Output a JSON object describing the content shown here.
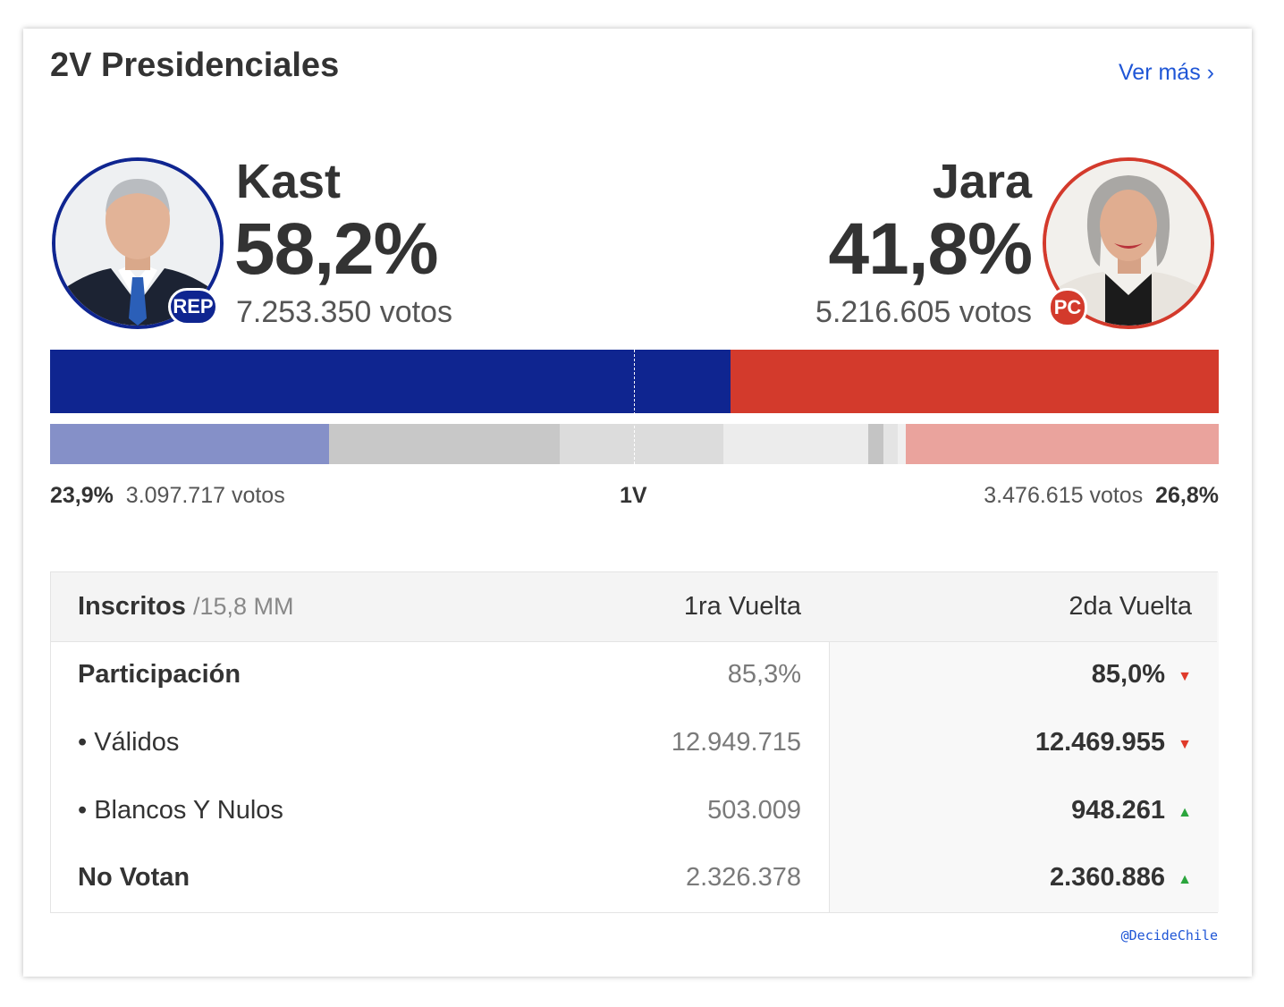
{
  "header": {
    "title": "2V Presidenciales",
    "more_link": "Ver más ›"
  },
  "candidates": {
    "left": {
      "name": "Kast",
      "pct": "58,2%",
      "votes": "7.253.350 votos",
      "party": "REP",
      "color": "#0f2590",
      "share": 58.2
    },
    "right": {
      "name": "Jara",
      "pct": "41,8%",
      "votes": "5.216.605 votos",
      "party": "PC",
      "color": "#d33a2c",
      "share": 41.8
    }
  },
  "first_round": {
    "label": "1V",
    "left_pct": "23,9%",
    "left_votes": "3.097.717 votos",
    "right_pct": "26,8%",
    "right_votes": "3.476.615 votos",
    "segments_pct": [
      23.9,
      19.7,
      14.0,
      12.4,
      1.3,
      1.2,
      0.7,
      26.8
    ]
  },
  "table": {
    "header": {
      "label": "Inscritos",
      "sub": "/15,8 MM",
      "col1": "1ra Vuelta",
      "col2": "2da Vuelta"
    },
    "rows": [
      {
        "label": "Participación",
        "v1": "85,3%",
        "v2": "85,0%",
        "trend": "▼"
      },
      {
        "label": "• Válidos",
        "v1": "12.949.715",
        "v2": "12.469.955",
        "trend": "▼"
      },
      {
        "label": "• Blancos Y Nulos",
        "v1": "503.009",
        "v2": "948.261",
        "trend": "▲"
      },
      {
        "label": "No Votan",
        "v1": "2.326.378",
        "v2": "2.360.886",
        "trend": "▲"
      }
    ]
  },
  "footer": {
    "handle": "@DecideChile"
  }
}
